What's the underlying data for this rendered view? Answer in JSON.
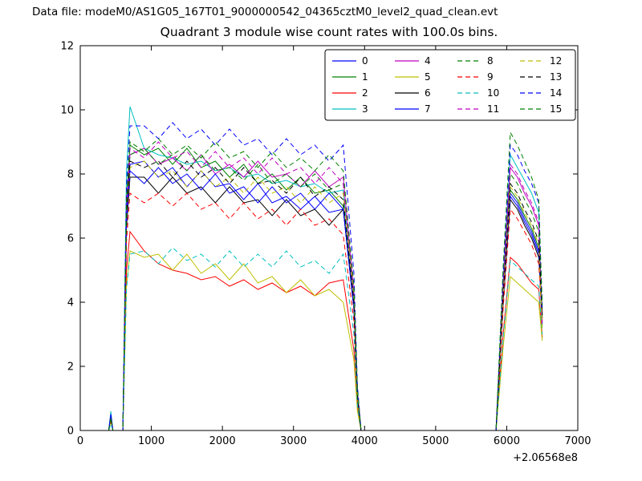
{
  "header": {
    "data_file_label": "Data file: modeM0/AS1G05_167T01_9000000542_04365cztM0_level2_quad_clean.evt"
  },
  "chart_data": {
    "type": "line",
    "title": "Quadrant 3 module wise count rates with 100.0s bins.",
    "xlabel": "",
    "ylabel": "",
    "x_offset_label": "+2.06568e8",
    "xlim": [
      0,
      7000
    ],
    "ylim": [
      0,
      12
    ],
    "x_ticks": [
      0,
      1000,
      2000,
      3000,
      4000,
      5000,
      6000,
      7000
    ],
    "y_ticks": [
      0,
      2,
      4,
      6,
      8,
      10,
      12
    ],
    "grid": false,
    "legend_position": "upper right",
    "legend_ncol": 4,
    "x": [
      400,
      430,
      460,
      600,
      650,
      700,
      900,
      1100,
      1300,
      1500,
      1700,
      1900,
      2100,
      2300,
      2500,
      2700,
      2900,
      3100,
      3300,
      3500,
      3700,
      3850,
      3900,
      3950,
      5850,
      5950,
      6050,
      6150,
      6250,
      6350,
      6450,
      6500
    ],
    "series": [
      {
        "name": "0",
        "color": "#0000ff",
        "style": "solid",
        "values": [
          0,
          0.4,
          0,
          0,
          6.6,
          8.3,
          8.4,
          7.9,
          8.2,
          7.6,
          8.1,
          7.6,
          7.7,
          7.2,
          7.7,
          7.1,
          7.3,
          6.9,
          7.3,
          6.8,
          6.9,
          3.8,
          1.0,
          0,
          0,
          4.0,
          7.3,
          7.0,
          6.5,
          6.1,
          5.5,
          3.5
        ]
      },
      {
        "name": "1",
        "color": "#008000",
        "style": "solid",
        "values": [
          0,
          0.5,
          0,
          0,
          7.1,
          8.9,
          8.6,
          8.8,
          8.3,
          8.8,
          8.2,
          8.4,
          7.9,
          8.3,
          7.7,
          8.0,
          7.5,
          7.9,
          7.4,
          7.5,
          7.0,
          3.9,
          1.1,
          0,
          0,
          4.1,
          7.5,
          7.2,
          6.7,
          6.3,
          5.7,
          3.6
        ]
      },
      {
        "name": "2",
        "color": "#ff0000",
        "style": "solid",
        "values": [
          0,
          0.3,
          0,
          0,
          5.0,
          6.2,
          5.6,
          5.2,
          5.0,
          4.9,
          4.7,
          4.8,
          4.5,
          4.7,
          4.4,
          4.6,
          4.3,
          4.5,
          4.2,
          4.6,
          4.7,
          2.5,
          0.7,
          0,
          0,
          3.0,
          5.4,
          5.2,
          4.9,
          4.6,
          4.4,
          2.9
        ]
      },
      {
        "name": "3",
        "color": "#00bfbf",
        "style": "solid",
        "values": [
          0,
          0.6,
          0,
          0,
          8.1,
          10.1,
          8.8,
          8.6,
          8.5,
          8.3,
          8.4,
          8.1,
          8.2,
          7.9,
          8.0,
          7.7,
          7.8,
          7.6,
          7.7,
          7.4,
          7.5,
          4.1,
          1.2,
          0,
          0,
          4.7,
          8.6,
          8.2,
          7.8,
          7.4,
          6.8,
          3.2
        ]
      },
      {
        "name": "4",
        "color": "#bf00bf",
        "style": "solid",
        "values": [
          0,
          0.4,
          0,
          0,
          6.9,
          8.6,
          8.8,
          8.3,
          8.5,
          8.1,
          8.6,
          8.0,
          8.3,
          7.9,
          8.4,
          7.9,
          8.0,
          7.6,
          8.1,
          7.6,
          7.9,
          4.3,
          1.2,
          0,
          0,
          4.5,
          8.2,
          7.9,
          7.4,
          7.0,
          6.4,
          3.4
        ]
      },
      {
        "name": "5",
        "color": "#bfbf00",
        "style": "solid",
        "values": [
          0,
          0.3,
          0,
          0,
          4.5,
          5.6,
          5.4,
          5.5,
          5.0,
          5.5,
          4.9,
          5.2,
          4.7,
          5.2,
          4.6,
          4.8,
          4.3,
          4.7,
          4.2,
          4.4,
          4.0,
          2.2,
          0.6,
          0,
          0,
          2.6,
          4.8,
          4.6,
          4.4,
          4.2,
          4.0,
          2.8
        ]
      },
      {
        "name": "6",
        "color": "#000000",
        "style": "solid",
        "values": [
          0,
          0.4,
          0,
          0,
          6.3,
          7.9,
          7.9,
          7.4,
          7.9,
          7.4,
          7.6,
          7.1,
          7.6,
          7.1,
          7.2,
          6.7,
          7.2,
          6.7,
          6.9,
          6.4,
          6.9,
          3.8,
          1.0,
          0,
          0,
          4.0,
          7.2,
          6.9,
          6.4,
          6.0,
          5.4,
          3.7
        ]
      },
      {
        "name": "7",
        "color": "#0000ff",
        "style": "solid",
        "values": [
          0,
          0.5,
          0,
          0,
          6.5,
          8.1,
          7.7,
          8.2,
          7.7,
          8.0,
          7.5,
          8.0,
          7.4,
          7.6,
          7.1,
          7.6,
          7.1,
          7.4,
          6.9,
          7.4,
          6.9,
          3.8,
          1.0,
          0,
          0,
          4.1,
          7.4,
          7.1,
          6.6,
          6.2,
          5.6,
          3.3
        ]
      },
      {
        "name": "8",
        "color": "#008000",
        "style": "dashed",
        "values": [
          0,
          0.4,
          0,
          0,
          6.9,
          8.6,
          8.8,
          8.3,
          8.6,
          8.1,
          8.6,
          8.1,
          8.2,
          7.8,
          8.3,
          7.7,
          8.0,
          7.6,
          8.0,
          7.5,
          7.7,
          4.2,
          1.2,
          0,
          0,
          4.4,
          8.0,
          7.7,
          7.2,
          6.8,
          6.2,
          3.5
        ]
      },
      {
        "name": "9",
        "color": "#ff0000",
        "style": "dashed",
        "values": [
          0,
          0.3,
          0,
          0,
          5.9,
          7.4,
          7.1,
          7.4,
          7.0,
          7.4,
          6.9,
          7.1,
          6.6,
          7.1,
          6.6,
          6.9,
          6.4,
          6.9,
          6.4,
          6.6,
          6.1,
          3.4,
          0.9,
          0,
          0,
          3.8,
          6.9,
          6.6,
          6.2,
          5.8,
          5.2,
          3.4
        ]
      },
      {
        "name": "10",
        "color": "#00bfbf",
        "style": "dashed",
        "values": [
          0,
          0.2,
          0,
          0,
          4.4,
          5.5,
          5.6,
          5.2,
          5.7,
          5.3,
          5.5,
          5.1,
          5.6,
          5.1,
          5.5,
          5.1,
          5.6,
          5.1,
          5.3,
          4.9,
          5.5,
          3.0,
          0.8,
          0,
          0,
          2.9,
          5.3,
          5.1,
          4.9,
          4.7,
          4.5,
          3.0
        ]
      },
      {
        "name": "11",
        "color": "#bf00bf",
        "style": "dashed",
        "values": [
          0,
          0.5,
          0,
          0,
          7.0,
          8.8,
          8.5,
          9.0,
          8.5,
          8.7,
          8.2,
          8.7,
          8.2,
          8.5,
          8.0,
          8.5,
          8.0,
          8.2,
          7.7,
          8.2,
          7.7,
          4.2,
          1.2,
          0,
          0,
          4.6,
          8.3,
          8.0,
          7.5,
          7.1,
          6.5,
          3.3
        ]
      },
      {
        "name": "12",
        "color": "#bfbf00",
        "style": "dashed",
        "values": [
          0,
          0.4,
          0,
          0,
          6.6,
          8.2,
          8.4,
          7.9,
          8.1,
          7.6,
          8.1,
          7.6,
          7.9,
          7.4,
          7.9,
          7.4,
          7.6,
          7.1,
          7.6,
          7.1,
          7.4,
          4.1,
          1.1,
          0,
          0,
          4.2,
          7.6,
          7.3,
          6.8,
          6.4,
          5.8,
          3.1
        ]
      },
      {
        "name": "13",
        "color": "#000000",
        "style": "dashed",
        "values": [
          0,
          0.4,
          0,
          0,
          6.7,
          8.4,
          8.2,
          8.4,
          7.9,
          8.4,
          7.9,
          8.2,
          7.7,
          8.2,
          7.7,
          7.8,
          7.4,
          7.9,
          7.3,
          7.6,
          7.2,
          4.0,
          1.1,
          0,
          0,
          4.2,
          7.7,
          7.4,
          6.9,
          6.5,
          5.9,
          3.6
        ]
      },
      {
        "name": "14",
        "color": "#0000ff",
        "style": "dashed",
        "values": [
          0,
          0.5,
          0,
          0,
          7.6,
          9.5,
          9.5,
          9.1,
          9.6,
          9.1,
          9.4,
          8.9,
          9.4,
          8.9,
          9.1,
          8.6,
          9.1,
          8.6,
          8.9,
          8.4,
          8.9,
          4.9,
          1.4,
          0,
          0,
          4.9,
          8.9,
          8.6,
          8.1,
          7.7,
          7.1,
          3.8
        ]
      },
      {
        "name": "15",
        "color": "#008000",
        "style": "dashed",
        "values": [
          0,
          0.4,
          0,
          0,
          7.2,
          9.0,
          8.7,
          9.1,
          8.6,
          8.9,
          8.5,
          9.0,
          8.5,
          8.7,
          8.2,
          8.7,
          8.2,
          8.5,
          8.1,
          8.6,
          8.1,
          4.5,
          1.3,
          0,
          0,
          5.1,
          9.3,
          8.9,
          8.4,
          7.9,
          7.2,
          3.9
        ]
      }
    ]
  }
}
